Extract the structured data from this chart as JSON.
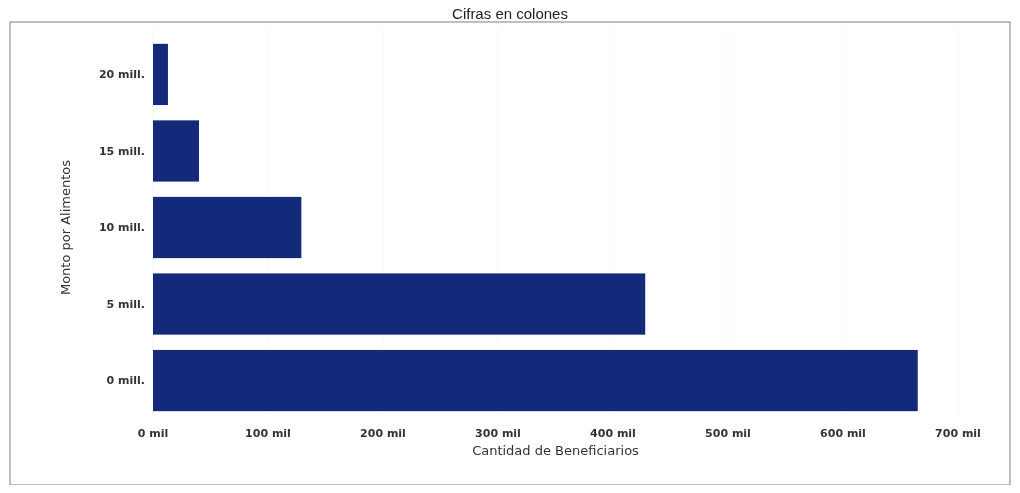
{
  "chart_data": {
    "type": "bar",
    "orientation": "horizontal",
    "title": "Cifras en colones",
    "xlabel": "Cantidad de Beneficiarios",
    "ylabel": "Monto por Alimentos",
    "categories": [
      "20 mill.",
      "15 mill.",
      "10 mill.",
      "5 mill.",
      "0 mill."
    ],
    "values": [
      13,
      40,
      129,
      428,
      665
    ],
    "color": "#13297a",
    "xlim": [
      0,
      700
    ],
    "xticks": [
      {
        "value": 0,
        "label": "0 mil"
      },
      {
        "value": 100,
        "label": "100 mil"
      },
      {
        "value": 200,
        "label": "200 mil"
      },
      {
        "value": 300,
        "label": "300 mil"
      },
      {
        "value": 400,
        "label": "400 mil"
      },
      {
        "value": 500,
        "label": "500 mil"
      },
      {
        "value": 600,
        "label": "600 mil"
      },
      {
        "value": 700,
        "label": "700 mil"
      }
    ],
    "grid": "x"
  }
}
